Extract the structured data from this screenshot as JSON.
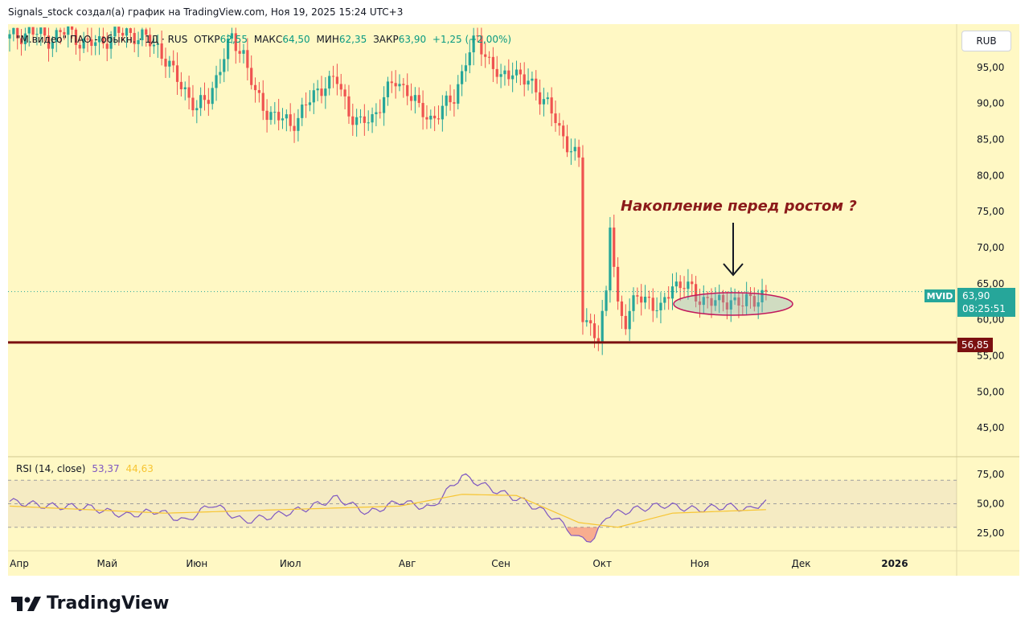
{
  "credit": "Signals_stock создал(а) график на TradingView.com, Ноя 19, 2025 15:24 UTC+3",
  "legend": {
    "symbol": "\"М.видео\" ПАО - обыкн. · 1Д · RUS",
    "open_label": "ОТКР",
    "open": "62,55",
    "high_label": "МАКС",
    "high": "64,50",
    "low_label": "МИН",
    "low": "62,35",
    "close_label": "ЗАКР",
    "close": "63,90",
    "change": "+1,25 (+2,00%)"
  },
  "rsi_legend": {
    "label": "RSI (14, close)",
    "value": "53,37",
    "ma_value": "44,63"
  },
  "currency": "RUB",
  "ticker": "MVID",
  "last_price": "63,90",
  "countdown": "08:25:51",
  "level_label": "56,85",
  "annotation": "Накопление перед ростом ?",
  "brand": "TradingView",
  "colors": {
    "up": "#26a69a",
    "down": "#ef5350",
    "background": "#fff8c4",
    "level": "#7b1010",
    "rsi": "#7e57c2",
    "rsi_ma": "#f7c532"
  },
  "chart_data": {
    "type": "candlestick",
    "interval": "1D",
    "y_ticks": [
      "95,00",
      "90,00",
      "85,00",
      "80,00",
      "75,00",
      "70,00",
      "65,00",
      "60,00",
      "55,00",
      "50,00",
      "45,00"
    ],
    "y_tick_values": [
      95,
      90,
      85,
      80,
      75,
      70,
      65,
      60,
      55,
      50,
      45
    ],
    "ylim": [
      41,
      101
    ],
    "x_ticks": [
      "Апр",
      "Май",
      "Июн",
      "Июл",
      "Авг",
      "Сен",
      "Окт",
      "Ноя",
      "Дек",
      "2026"
    ],
    "horizontal_level": 56.85,
    "last_close": 63.9,
    "close_path": [
      {
        "day": 0,
        "close": 99
      },
      {
        "day": 5,
        "close": 100
      },
      {
        "day": 10,
        "close": 99
      },
      {
        "day": 15,
        "close": 100
      },
      {
        "day": 20,
        "close": 98
      },
      {
        "day": 25,
        "close": 99
      },
      {
        "day": 30,
        "close": 100
      },
      {
        "day": 34,
        "close": 99
      },
      {
        "day": 38,
        "close": 98
      },
      {
        "day": 42,
        "close": 94
      },
      {
        "day": 45,
        "close": 92
      },
      {
        "day": 48,
        "close": 89
      },
      {
        "day": 51,
        "close": 91
      },
      {
        "day": 54,
        "close": 95
      },
      {
        "day": 57,
        "close": 99
      },
      {
        "day": 60,
        "close": 97
      },
      {
        "day": 63,
        "close": 91
      },
      {
        "day": 66,
        "close": 89
      },
      {
        "day": 69,
        "close": 88
      },
      {
        "day": 72,
        "close": 87
      },
      {
        "day": 75,
        "close": 89
      },
      {
        "day": 78,
        "close": 91
      },
      {
        "day": 81,
        "close": 93
      },
      {
        "day": 84,
        "close": 93
      },
      {
        "day": 87,
        "close": 89
      },
      {
        "day": 90,
        "close": 87
      },
      {
        "day": 93,
        "close": 88
      },
      {
        "day": 96,
        "close": 91
      },
      {
        "day": 99,
        "close": 93
      },
      {
        "day": 102,
        "close": 92
      },
      {
        "day": 105,
        "close": 89
      },
      {
        "day": 108,
        "close": 88
      },
      {
        "day": 111,
        "close": 89
      },
      {
        "day": 114,
        "close": 91
      },
      {
        "day": 117,
        "close": 96
      },
      {
        "day": 120,
        "close": 99
      },
      {
        "day": 123,
        "close": 96
      },
      {
        "day": 126,
        "close": 93
      },
      {
        "day": 129,
        "close": 95
      },
      {
        "day": 132,
        "close": 93
      },
      {
        "day": 135,
        "close": 92
      },
      {
        "day": 138,
        "close": 90
      },
      {
        "day": 141,
        "close": 86
      },
      {
        "day": 144,
        "close": 84
      },
      {
        "day": 146,
        "close": 82
      },
      {
        "day": 147,
        "close": 60
      },
      {
        "day": 149,
        "close": 59
      },
      {
        "day": 151,
        "close": 58
      },
      {
        "day": 153,
        "close": 63
      },
      {
        "day": 154,
        "close": 73
      },
      {
        "day": 156,
        "close": 62
      },
      {
        "day": 158,
        "close": 60
      },
      {
        "day": 161,
        "close": 63
      },
      {
        "day": 164,
        "close": 63
      },
      {
        "day": 167,
        "close": 61
      },
      {
        "day": 170,
        "close": 65
      },
      {
        "day": 173,
        "close": 65
      },
      {
        "day": 176,
        "close": 63
      },
      {
        "day": 179,
        "close": 63
      },
      {
        "day": 182,
        "close": 62
      },
      {
        "day": 185,
        "close": 63
      },
      {
        "day": 188,
        "close": 62
      },
      {
        "day": 191,
        "close": 63
      },
      {
        "day": 194,
        "close": 63.9
      }
    ],
    "rsi": {
      "name": "RSI (14, close)",
      "ylim": [
        10,
        90
      ],
      "y_ticks": [
        "75,00",
        "50,00",
        "25,00"
      ],
      "y_tick_values": [
        75,
        50,
        25
      ],
      "bands": [
        30,
        70
      ],
      "values": [
        {
          "day": 0,
          "value": 52
        },
        {
          "day": 10,
          "value": 48
        },
        {
          "day": 20,
          "value": 47
        },
        {
          "day": 30,
          "value": 40
        },
        {
          "day": 38,
          "value": 44
        },
        {
          "day": 45,
          "value": 35
        },
        {
          "day": 52,
          "value": 50
        },
        {
          "day": 60,
          "value": 35
        },
        {
          "day": 68,
          "value": 40
        },
        {
          "day": 76,
          "value": 46
        },
        {
          "day": 84,
          "value": 55
        },
        {
          "day": 92,
          "value": 42
        },
        {
          "day": 100,
          "value": 52
        },
        {
          "day": 108,
          "value": 46
        },
        {
          "day": 116,
          "value": 74
        },
        {
          "day": 124,
          "value": 62
        },
        {
          "day": 132,
          "value": 52
        },
        {
          "day": 140,
          "value": 38
        },
        {
          "day": 146,
          "value": 20
        },
        {
          "day": 150,
          "value": 20
        },
        {
          "day": 153,
          "value": 40
        },
        {
          "day": 160,
          "value": 45
        },
        {
          "day": 168,
          "value": 49
        },
        {
          "day": 176,
          "value": 45
        },
        {
          "day": 184,
          "value": 48
        },
        {
          "day": 190,
          "value": 45
        },
        {
          "day": 194,
          "value": 53
        }
      ],
      "ma_values": [
        {
          "day": 0,
          "value": 48
        },
        {
          "day": 20,
          "value": 45
        },
        {
          "day": 40,
          "value": 42
        },
        {
          "day": 60,
          "value": 44
        },
        {
          "day": 80,
          "value": 46
        },
        {
          "day": 100,
          "value": 48
        },
        {
          "day": 116,
          "value": 58
        },
        {
          "day": 130,
          "value": 57
        },
        {
          "day": 146,
          "value": 34
        },
        {
          "day": 156,
          "value": 30
        },
        {
          "day": 170,
          "value": 42
        },
        {
          "day": 194,
          "value": 45
        }
      ]
    }
  }
}
